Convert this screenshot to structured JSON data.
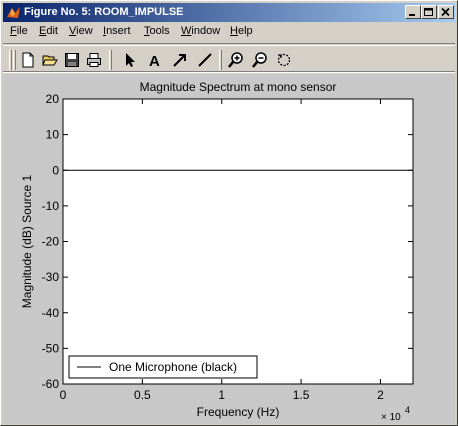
{
  "window": {
    "title": "Figure No. 5: ROOM_IMPULSE"
  },
  "title_buttons": {
    "minimize_icon": "minimize-icon",
    "maximize_icon": "maximize-icon",
    "close_icon": "close-icon"
  },
  "menu": {
    "items": [
      {
        "label": "File",
        "mnemonic": "F",
        "rest": "ile"
      },
      {
        "label": "Edit",
        "mnemonic": "E",
        "rest": "dit"
      },
      {
        "label": "View",
        "mnemonic": "V",
        "rest": "iew"
      },
      {
        "label": "Insert",
        "mnemonic": "I",
        "rest": "nsert"
      },
      {
        "label": "Tools",
        "mnemonic": "T",
        "rest": "ools"
      },
      {
        "label": "Window",
        "mnemonic": "W",
        "rest": "indow"
      },
      {
        "label": "Help",
        "mnemonic": "H",
        "rest": "elp"
      }
    ]
  },
  "toolbar": {
    "tools": [
      "new-file-icon",
      "open-folder-icon",
      "save-icon",
      "print-icon",
      "select-arrow-icon",
      "insert-text-icon",
      "insert-arrow-icon",
      "insert-line-icon",
      "zoom-in-icon",
      "zoom-out-icon",
      "rotate-icon"
    ],
    "text_tool_label": "A"
  },
  "chart_data": {
    "type": "line",
    "title": "Magnitude Spectrum at mono sensor",
    "xlabel": "Frequency (Hz)",
    "ylabel": "Magnitude (dB) Source 1",
    "x_multiplier_base": "× 10",
    "x_multiplier_exp": "4",
    "xlim": [
      0,
      22050
    ],
    "ylim": [
      -60,
      20
    ],
    "x_ticks": [
      0,
      5000,
      10000,
      15000,
      20000
    ],
    "x_tick_labels": [
      "0",
      "0.5",
      "1",
      "1.5",
      "2"
    ],
    "y_ticks": [
      20,
      10,
      0,
      -10,
      -20,
      -30,
      -40,
      -50,
      -60
    ],
    "y_tick_labels": [
      "20",
      "10",
      "0",
      "-10",
      "-20",
      "-30",
      "-40",
      "-50",
      "-60"
    ],
    "grid": false,
    "legend_position": "bottom-left",
    "series": [
      {
        "name": "One Microphone (black)",
        "color": "#000000",
        "x": [
          0,
          22050
        ],
        "y": [
          0,
          0
        ]
      }
    ]
  }
}
